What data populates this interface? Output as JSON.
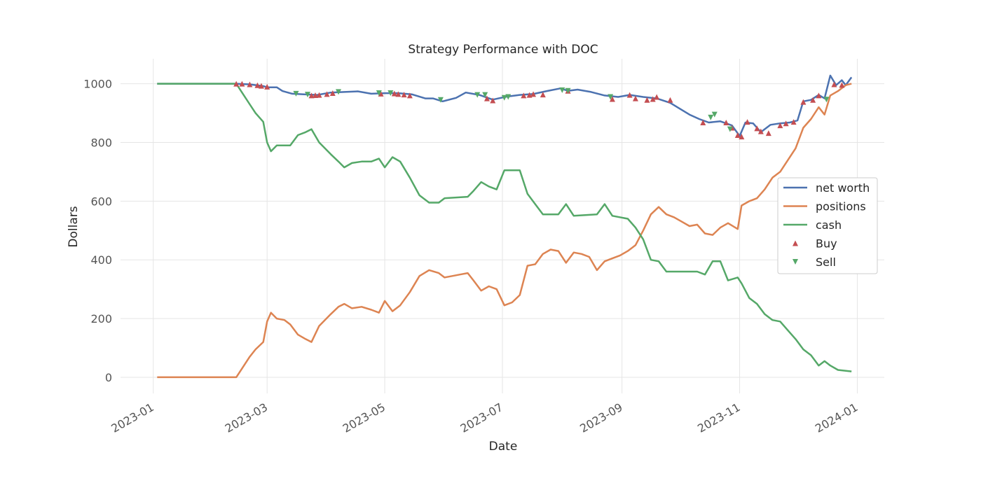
{
  "chart_data": {
    "type": "line",
    "title": "Strategy Performance with DOC",
    "xlabel": "Date",
    "ylabel": "Dollars",
    "xlim": [
      "2022-12-15",
      "2024-01-15"
    ],
    "ylim": [
      -55,
      1085
    ],
    "x_ticks": [
      "2023-01",
      "2023-03",
      "2023-05",
      "2023-07",
      "2023-09",
      "2023-11",
      "2024-01"
    ],
    "y_ticks": [
      0,
      200,
      400,
      600,
      800,
      1000
    ],
    "grid": true,
    "legend_position": "center-right",
    "series": [
      {
        "name": "net worth",
        "color": "#4c72b0",
        "points": [
          [
            "2023-01-03",
            1000
          ],
          [
            "2023-02-13",
            1000
          ],
          [
            "2023-02-20",
            998
          ],
          [
            "2023-02-27",
            992
          ],
          [
            "2023-03-01",
            988
          ],
          [
            "2023-03-06",
            988
          ],
          [
            "2023-03-09",
            975
          ],
          [
            "2023-03-14",
            966
          ],
          [
            "2023-03-20",
            964
          ],
          [
            "2023-03-27",
            962
          ],
          [
            "2023-04-03",
            970
          ],
          [
            "2023-04-10",
            972
          ],
          [
            "2023-04-17",
            974
          ],
          [
            "2023-04-24",
            966
          ],
          [
            "2023-05-01",
            968
          ],
          [
            "2023-05-08",
            968
          ],
          [
            "2023-05-15",
            964
          ],
          [
            "2023-05-22",
            950
          ],
          [
            "2023-05-26",
            950
          ],
          [
            "2023-05-31",
            940
          ],
          [
            "2023-06-07",
            952
          ],
          [
            "2023-06-12",
            970
          ],
          [
            "2023-06-19",
            962
          ],
          [
            "2023-06-26",
            946
          ],
          [
            "2023-07-03",
            956
          ],
          [
            "2023-07-10",
            962
          ],
          [
            "2023-07-17",
            965
          ],
          [
            "2023-07-24",
            975
          ],
          [
            "2023-07-31",
            984
          ],
          [
            "2023-08-04",
            976
          ],
          [
            "2023-08-09",
            980
          ],
          [
            "2023-08-16",
            972
          ],
          [
            "2023-08-23",
            960
          ],
          [
            "2023-08-30",
            955
          ],
          [
            "2023-09-05",
            962
          ],
          [
            "2023-09-12",
            955
          ],
          [
            "2023-09-19",
            950
          ],
          [
            "2023-09-26",
            935
          ],
          [
            "2023-10-01",
            915
          ],
          [
            "2023-10-06",
            895
          ],
          [
            "2023-10-11",
            880
          ],
          [
            "2023-10-16",
            868
          ],
          [
            "2023-10-22",
            872
          ],
          [
            "2023-10-28",
            858
          ],
          [
            "2023-11-01",
            822
          ],
          [
            "2023-11-04",
            868
          ],
          [
            "2023-11-08",
            865
          ],
          [
            "2023-11-12",
            835
          ],
          [
            "2023-11-17",
            860
          ],
          [
            "2023-11-22",
            865
          ],
          [
            "2023-11-27",
            868
          ],
          [
            "2023-12-01",
            875
          ],
          [
            "2023-12-04",
            940
          ],
          [
            "2023-12-08",
            945
          ],
          [
            "2023-12-12",
            962
          ],
          [
            "2023-12-15",
            950
          ],
          [
            "2023-12-18",
            1028
          ],
          [
            "2023-12-21",
            995
          ],
          [
            "2023-12-24",
            1012
          ],
          [
            "2023-12-26",
            995
          ],
          [
            "2023-12-29",
            1022
          ]
        ]
      },
      {
        "name": "positions",
        "color": "#dd8452",
        "points": [
          [
            "2023-01-03",
            0
          ],
          [
            "2023-02-13",
            0
          ],
          [
            "2023-02-16",
            30
          ],
          [
            "2023-02-20",
            70
          ],
          [
            "2023-02-23",
            95
          ],
          [
            "2023-02-27",
            120
          ],
          [
            "2023-03-01",
            190
          ],
          [
            "2023-03-03",
            220
          ],
          [
            "2023-03-06",
            200
          ],
          [
            "2023-03-10",
            195
          ],
          [
            "2023-03-13",
            180
          ],
          [
            "2023-03-17",
            145
          ],
          [
            "2023-03-21",
            130
          ],
          [
            "2023-03-24",
            120
          ],
          [
            "2023-03-28",
            175
          ],
          [
            "2023-04-03",
            215
          ],
          [
            "2023-04-07",
            240
          ],
          [
            "2023-04-10",
            250
          ],
          [
            "2023-04-14",
            235
          ],
          [
            "2023-04-19",
            240
          ],
          [
            "2023-04-24",
            230
          ],
          [
            "2023-04-28",
            220
          ],
          [
            "2023-05-01",
            260
          ],
          [
            "2023-05-05",
            225
          ],
          [
            "2023-05-09",
            245
          ],
          [
            "2023-05-14",
            290
          ],
          [
            "2023-05-19",
            345
          ],
          [
            "2023-05-24",
            365
          ],
          [
            "2023-05-29",
            355
          ],
          [
            "2023-06-01",
            340
          ],
          [
            "2023-06-05",
            345
          ],
          [
            "2023-06-09",
            350
          ],
          [
            "2023-06-13",
            355
          ],
          [
            "2023-06-16",
            330
          ],
          [
            "2023-06-20",
            295
          ],
          [
            "2023-06-24",
            310
          ],
          [
            "2023-06-28",
            300
          ],
          [
            "2023-07-02",
            245
          ],
          [
            "2023-07-06",
            255
          ],
          [
            "2023-07-10",
            280
          ],
          [
            "2023-07-14",
            380
          ],
          [
            "2023-07-18",
            385
          ],
          [
            "2023-07-22",
            420
          ],
          [
            "2023-07-26",
            435
          ],
          [
            "2023-07-30",
            430
          ],
          [
            "2023-08-03",
            390
          ],
          [
            "2023-08-07",
            425
          ],
          [
            "2023-08-11",
            420
          ],
          [
            "2023-08-15",
            410
          ],
          [
            "2023-08-19",
            365
          ],
          [
            "2023-08-23",
            395
          ],
          [
            "2023-08-27",
            405
          ],
          [
            "2023-08-31",
            415
          ],
          [
            "2023-09-04",
            430
          ],
          [
            "2023-09-08",
            450
          ],
          [
            "2023-09-12",
            500
          ],
          [
            "2023-09-16",
            555
          ],
          [
            "2023-09-20",
            580
          ],
          [
            "2023-09-24",
            555
          ],
          [
            "2023-09-28",
            545
          ],
          [
            "2023-10-02",
            530
          ],
          [
            "2023-10-06",
            515
          ],
          [
            "2023-10-10",
            520
          ],
          [
            "2023-10-14",
            490
          ],
          [
            "2023-10-18",
            485
          ],
          [
            "2023-10-22",
            510
          ],
          [
            "2023-10-26",
            525
          ],
          [
            "2023-10-31",
            505
          ],
          [
            "2023-11-02",
            585
          ],
          [
            "2023-11-06",
            600
          ],
          [
            "2023-11-10",
            610
          ],
          [
            "2023-11-14",
            640
          ],
          [
            "2023-11-18",
            680
          ],
          [
            "2023-11-22",
            700
          ],
          [
            "2023-11-26",
            740
          ],
          [
            "2023-11-30",
            780
          ],
          [
            "2023-12-04",
            850
          ],
          [
            "2023-12-08",
            880
          ],
          [
            "2023-12-12",
            920
          ],
          [
            "2023-12-15",
            895
          ],
          [
            "2023-12-18",
            960
          ],
          [
            "2023-12-22",
            975
          ],
          [
            "2023-12-26",
            995
          ],
          [
            "2023-12-29",
            1000
          ]
        ]
      },
      {
        "name": "cash",
        "color": "#55a868",
        "points": [
          [
            "2023-01-03",
            1000
          ],
          [
            "2023-02-13",
            1000
          ],
          [
            "2023-02-16",
            970
          ],
          [
            "2023-02-20",
            930
          ],
          [
            "2023-02-23",
            900
          ],
          [
            "2023-02-27",
            870
          ],
          [
            "2023-03-01",
            800
          ],
          [
            "2023-03-03",
            770
          ],
          [
            "2023-03-06",
            790
          ],
          [
            "2023-03-13",
            790
          ],
          [
            "2023-03-17",
            825
          ],
          [
            "2023-03-21",
            835
          ],
          [
            "2023-03-24",
            845
          ],
          [
            "2023-03-28",
            800
          ],
          [
            "2023-04-03",
            760
          ],
          [
            "2023-04-07",
            735
          ],
          [
            "2023-04-10",
            715
          ],
          [
            "2023-04-14",
            730
          ],
          [
            "2023-04-19",
            735
          ],
          [
            "2023-04-24",
            735
          ],
          [
            "2023-04-28",
            745
          ],
          [
            "2023-05-01",
            715
          ],
          [
            "2023-05-05",
            750
          ],
          [
            "2023-05-09",
            735
          ],
          [
            "2023-05-14",
            680
          ],
          [
            "2023-05-19",
            620
          ],
          [
            "2023-05-24",
            595
          ],
          [
            "2023-05-29",
            595
          ],
          [
            "2023-06-01",
            610
          ],
          [
            "2023-06-13",
            615
          ],
          [
            "2023-06-16",
            635
          ],
          [
            "2023-06-20",
            665
          ],
          [
            "2023-06-24",
            650
          ],
          [
            "2023-06-28",
            640
          ],
          [
            "2023-07-02",
            705
          ],
          [
            "2023-07-10",
            705
          ],
          [
            "2023-07-14",
            625
          ],
          [
            "2023-07-18",
            590
          ],
          [
            "2023-07-22",
            555
          ],
          [
            "2023-07-30",
            555
          ],
          [
            "2023-08-03",
            590
          ],
          [
            "2023-08-07",
            550
          ],
          [
            "2023-08-19",
            555
          ],
          [
            "2023-08-23",
            590
          ],
          [
            "2023-08-27",
            550
          ],
          [
            "2023-09-04",
            540
          ],
          [
            "2023-09-08",
            510
          ],
          [
            "2023-09-12",
            470
          ],
          [
            "2023-09-16",
            400
          ],
          [
            "2023-09-20",
            395
          ],
          [
            "2023-09-24",
            360
          ],
          [
            "2023-10-10",
            360
          ],
          [
            "2023-10-14",
            350
          ],
          [
            "2023-10-18",
            395
          ],
          [
            "2023-10-22",
            395
          ],
          [
            "2023-10-26",
            330
          ],
          [
            "2023-10-31",
            340
          ],
          [
            "2023-11-02",
            320
          ],
          [
            "2023-11-06",
            270
          ],
          [
            "2023-11-10",
            250
          ],
          [
            "2023-11-14",
            215
          ],
          [
            "2023-11-18",
            195
          ],
          [
            "2023-11-22",
            190
          ],
          [
            "2023-11-26",
            160
          ],
          [
            "2023-11-30",
            130
          ],
          [
            "2023-12-04",
            95
          ],
          [
            "2023-12-08",
            75
          ],
          [
            "2023-12-12",
            40
          ],
          [
            "2023-12-15",
            55
          ],
          [
            "2023-12-18",
            40
          ],
          [
            "2023-12-22",
            25
          ],
          [
            "2023-12-29",
            20
          ]
        ]
      }
    ],
    "markers": [
      {
        "name": "Buy",
        "color": "#c44e52",
        "symbol": "triangle-up",
        "points": [
          [
            "2023-02-13",
            1000
          ],
          [
            "2023-02-16",
            1000
          ],
          [
            "2023-02-20",
            998
          ],
          [
            "2023-02-24",
            995
          ],
          [
            "2023-02-26",
            993
          ],
          [
            "2023-03-01",
            990
          ],
          [
            "2023-03-24",
            960
          ],
          [
            "2023-03-26",
            961
          ],
          [
            "2023-03-28",
            962
          ],
          [
            "2023-04-01",
            965
          ],
          [
            "2023-04-04",
            968
          ],
          [
            "2023-04-29",
            966
          ],
          [
            "2023-05-06",
            967
          ],
          [
            "2023-05-08",
            965
          ],
          [
            "2023-05-11",
            963
          ],
          [
            "2023-05-14",
            960
          ],
          [
            "2023-06-23",
            950
          ],
          [
            "2023-06-26",
            943
          ],
          [
            "2023-07-12",
            960
          ],
          [
            "2023-07-15",
            962
          ],
          [
            "2023-07-17",
            965
          ],
          [
            "2023-07-22",
            963
          ],
          [
            "2023-08-04",
            976
          ],
          [
            "2023-08-27",
            948
          ],
          [
            "2023-09-05",
            962
          ],
          [
            "2023-09-08",
            950
          ],
          [
            "2023-09-14",
            945
          ],
          [
            "2023-09-17",
            948
          ],
          [
            "2023-09-19",
            955
          ],
          [
            "2023-09-26",
            945
          ],
          [
            "2023-10-13",
            868
          ],
          [
            "2023-10-25",
            868
          ],
          [
            "2023-10-28",
            850
          ],
          [
            "2023-10-31",
            825
          ],
          [
            "2023-11-02",
            820
          ],
          [
            "2023-11-05",
            870
          ],
          [
            "2023-11-10",
            848
          ],
          [
            "2023-11-12",
            838
          ],
          [
            "2023-11-16",
            832
          ],
          [
            "2023-11-22",
            858
          ],
          [
            "2023-11-25",
            865
          ],
          [
            "2023-11-29",
            870
          ],
          [
            "2023-12-04",
            938
          ],
          [
            "2023-12-09",
            945
          ],
          [
            "2023-12-12",
            960
          ],
          [
            "2023-12-20",
            998
          ],
          [
            "2023-12-24",
            996
          ]
        ]
      },
      {
        "name": "Sell",
        "color": "#55a868",
        "symbol": "triangle-down",
        "points": [
          [
            "2023-03-16",
            966
          ],
          [
            "2023-03-22",
            963
          ],
          [
            "2023-04-07",
            972
          ],
          [
            "2023-04-28",
            968
          ],
          [
            "2023-05-04",
            968
          ],
          [
            "2023-05-30",
            945
          ],
          [
            "2023-06-18",
            962
          ],
          [
            "2023-06-22",
            962
          ],
          [
            "2023-07-02",
            952
          ],
          [
            "2023-07-04",
            955
          ],
          [
            "2023-08-01",
            978
          ],
          [
            "2023-08-04",
            976
          ],
          [
            "2023-08-26",
            955
          ],
          [
            "2023-10-17",
            885
          ],
          [
            "2023-10-19",
            895
          ],
          [
            "2023-10-27",
            845
          ],
          [
            "2023-12-16",
            946
          ]
        ]
      }
    ]
  }
}
